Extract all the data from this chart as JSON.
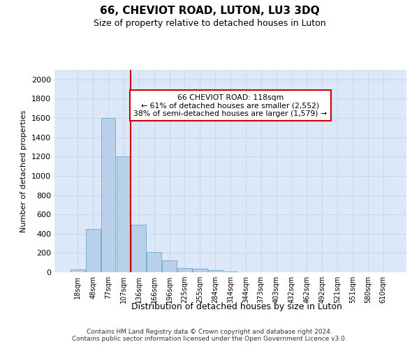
{
  "title": "66, CHEVIOT ROAD, LUTON, LU3 3DQ",
  "subtitle": "Size of property relative to detached houses in Luton",
  "xlabel": "Distribution of detached houses by size in Luton",
  "ylabel": "Number of detached properties",
  "bar_labels": [
    "18sqm",
    "48sqm",
    "77sqm",
    "107sqm",
    "136sqm",
    "166sqm",
    "196sqm",
    "225sqm",
    "255sqm",
    "284sqm",
    "314sqm",
    "344sqm",
    "373sqm",
    "403sqm",
    "432sqm",
    "462sqm",
    "492sqm",
    "521sqm",
    "551sqm",
    "580sqm",
    "610sqm"
  ],
  "bar_values": [
    30,
    450,
    1600,
    1200,
    490,
    210,
    125,
    45,
    35,
    20,
    10,
    0,
    0,
    0,
    0,
    0,
    0,
    0,
    0,
    0,
    0
  ],
  "bar_color": "#b8d0ea",
  "bar_edgecolor": "#7aaed0",
  "vline_color": "#cc0000",
  "vline_pos": 3.45,
  "annotation_title": "66 CHEVIOT ROAD: 118sqm",
  "annotation_line1": "← 61% of detached houses are smaller (2,552)",
  "annotation_line2": "38% of semi-detached houses are larger (1,579) →",
  "annotation_box_color": "#ffffff",
  "annotation_box_edgecolor": "#cc0000",
  "ylim": [
    0,
    2100
  ],
  "yticks": [
    0,
    200,
    400,
    600,
    800,
    1000,
    1200,
    1400,
    1600,
    1800,
    2000
  ],
  "grid_color": "#c8d8ee",
  "background_color": "#dce8f8",
  "footer": "Contains HM Land Registry data © Crown copyright and database right 2024.\nContains public sector information licensed under the Open Government Licence v3.0."
}
